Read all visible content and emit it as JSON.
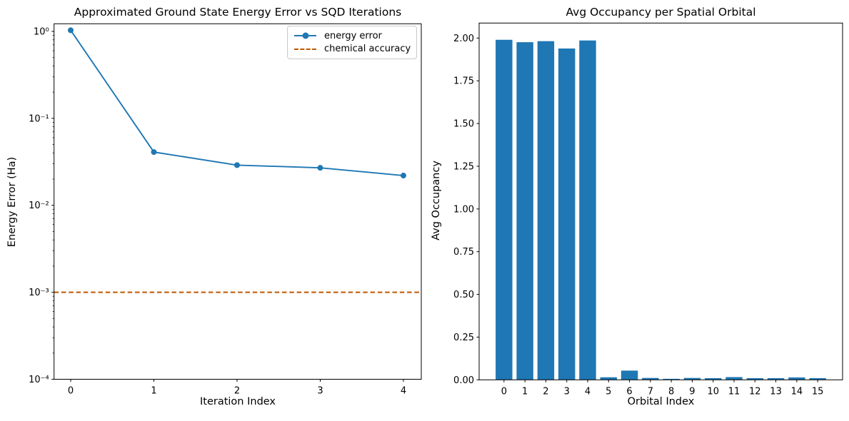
{
  "figure": {
    "background": "#ffffff",
    "spine_color": "#000000",
    "tick_label_color": "#000000"
  },
  "chart_data": [
    {
      "type": "line",
      "title": "Approximated Ground State Energy Error vs SQD Iterations",
      "xlabel": "Iteration Index",
      "ylabel": "Energy Error (Ha)",
      "yscale": "log",
      "grid": false,
      "x": [
        0,
        1,
        2,
        3,
        4
      ],
      "series": [
        {
          "name": "energy error",
          "color": "#1f77b4",
          "marker": "circle",
          "values": [
            1.03,
            0.041,
            0.029,
            0.027,
            0.022
          ]
        }
      ],
      "hline": {
        "name": "chemical accuracy",
        "value": 0.001,
        "color": "#BF5700",
        "linestyle": "dashed"
      },
      "xlim": [
        -0.2,
        4.215
      ],
      "ylim": [
        0.0001,
        1.224
      ],
      "xticks": [
        {
          "value": 0,
          "label": "0"
        },
        {
          "value": 1,
          "label": "1"
        },
        {
          "value": 2,
          "label": "2"
        },
        {
          "value": 3,
          "label": "3"
        },
        {
          "value": 4,
          "label": "4"
        }
      ],
      "yticks": [
        {
          "value": 1,
          "label": "10⁰"
        },
        {
          "value": 0.1,
          "label": "10⁻¹"
        },
        {
          "value": 0.01,
          "label": "10⁻²"
        },
        {
          "value": 0.001,
          "label": "10⁻³"
        },
        {
          "value": 0.0001,
          "label": "10⁻⁴"
        }
      ],
      "legend": {
        "position": "upper right",
        "entries": [
          "energy error",
          "chemical accuracy"
        ]
      }
    },
    {
      "type": "bar",
      "title": "Avg Occupancy per Spatial Orbital",
      "xlabel": "Orbital Index",
      "ylabel": "Avg Occupancy",
      "grid": false,
      "bar_color": "#1f77b4",
      "bar_width": 0.8,
      "categories": [
        "0",
        "1",
        "2",
        "3",
        "4",
        "5",
        "6",
        "7",
        "8",
        "9",
        "10",
        "11",
        "12",
        "13",
        "14",
        "15"
      ],
      "values": [
        1.99,
        1.976,
        1.982,
        1.939,
        1.986,
        0.015,
        0.054,
        0.011,
        0.006,
        0.011,
        0.01,
        0.016,
        0.01,
        0.01,
        0.014,
        0.01
      ],
      "xlim": [
        -1.19,
        16.19
      ],
      "ylim": [
        0,
        2.088
      ],
      "yticks": [
        {
          "value": 0,
          "label": "0.00"
        },
        {
          "value": 0.25,
          "label": "0.25"
        },
        {
          "value": 0.5,
          "label": "0.50"
        },
        {
          "value": 0.75,
          "label": "0.75"
        },
        {
          "value": 1,
          "label": "1.00"
        },
        {
          "value": 1.25,
          "label": "1.25"
        },
        {
          "value": 1.5,
          "label": "1.50"
        },
        {
          "value": 1.75,
          "label": "1.75"
        },
        {
          "value": 2,
          "label": "2.00"
        }
      ]
    }
  ]
}
